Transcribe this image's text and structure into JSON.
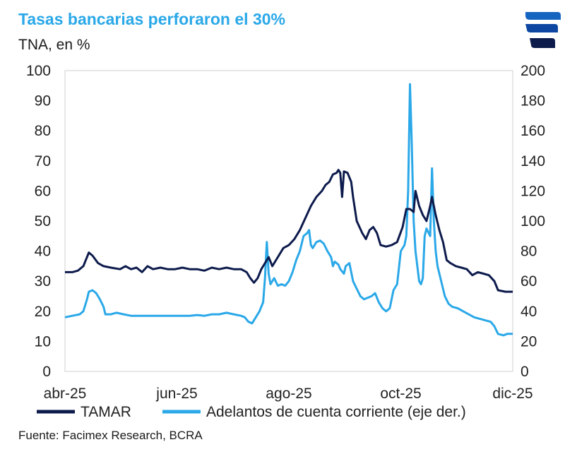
{
  "header": {
    "title": "Tasas bancarias perforaron el 30%",
    "subtitle": "TNA, en %"
  },
  "footer": {
    "source": "Fuente: Facimex Research, BCRA"
  },
  "colors": {
    "title": "#2aa8e8",
    "tamar": "#0d1b4c",
    "adelantos": "#2aa8e8",
    "axis": "#222222"
  },
  "chart_data": {
    "type": "line",
    "title": "Tasas bancarias perforaron el 30%",
    "ylabel": "TNA, en %",
    "ylim": [
      0,
      100
    ],
    "y2lim": [
      0,
      200
    ],
    "yticks": [
      "0",
      "10",
      "20",
      "30",
      "40",
      "50",
      "60",
      "70",
      "80",
      "90",
      "100"
    ],
    "y2ticks": [
      "0",
      "20",
      "40",
      "60",
      "80",
      "100",
      "120",
      "140",
      "160",
      "180",
      "200"
    ],
    "xticks": [
      {
        "label": "abr-25",
        "day": 0
      },
      {
        "label": "jun-25",
        "day": 61
      },
      {
        "label": "ago-25",
        "day": 122
      },
      {
        "label": "oct-25",
        "day": 183
      },
      {
        "label": "dic-25",
        "day": 244
      }
    ],
    "xlim_days": [
      0,
      244
    ],
    "series": [
      {
        "name": "TAMAR",
        "axis": "left",
        "points": [
          [
            0,
            33
          ],
          [
            4,
            33
          ],
          [
            7,
            33.5
          ],
          [
            10,
            35
          ],
          [
            12,
            38
          ],
          [
            13,
            39.5
          ],
          [
            15,
            38.5
          ],
          [
            18,
            36
          ],
          [
            21,
            35
          ],
          [
            25,
            34.5
          ],
          [
            30,
            34
          ],
          [
            33,
            35
          ],
          [
            36,
            34
          ],
          [
            39,
            34.5
          ],
          [
            42,
            33
          ],
          [
            45,
            35
          ],
          [
            48,
            34
          ],
          [
            52,
            34.5
          ],
          [
            56,
            34
          ],
          [
            60,
            34
          ],
          [
            64,
            34.5
          ],
          [
            68,
            34
          ],
          [
            72,
            34
          ],
          [
            76,
            33.5
          ],
          [
            80,
            34.5
          ],
          [
            84,
            34
          ],
          [
            88,
            34.5
          ],
          [
            92,
            34
          ],
          [
            96,
            34
          ],
          [
            99,
            33
          ],
          [
            101,
            31
          ],
          [
            103,
            29.5
          ],
          [
            105,
            31
          ],
          [
            107,
            34
          ],
          [
            109,
            36
          ],
          [
            111,
            38
          ],
          [
            113,
            35
          ],
          [
            116,
            38
          ],
          [
            119,
            41
          ],
          [
            122,
            42
          ],
          [
            125,
            44
          ],
          [
            128,
            47
          ],
          [
            131,
            51
          ],
          [
            134,
            55
          ],
          [
            137,
            58
          ],
          [
            140,
            60
          ],
          [
            142,
            62
          ],
          [
            144,
            63
          ],
          [
            146,
            65.5
          ],
          [
            148,
            66
          ],
          [
            149,
            67
          ],
          [
            150,
            66
          ],
          [
            151,
            58
          ],
          [
            152,
            66.5
          ],
          [
            154,
            66
          ],
          [
            156,
            63
          ],
          [
            157,
            58
          ],
          [
            159,
            50
          ],
          [
            162,
            46
          ],
          [
            164,
            44
          ],
          [
            166,
            47
          ],
          [
            168,
            48
          ],
          [
            170,
            46
          ],
          [
            172,
            42
          ],
          [
            175,
            41.5
          ],
          [
            178,
            42
          ],
          [
            181,
            43
          ],
          [
            184,
            48
          ],
          [
            186,
            54
          ],
          [
            188,
            54
          ],
          [
            190,
            53
          ],
          [
            191,
            60
          ],
          [
            193,
            55
          ],
          [
            195,
            52
          ],
          [
            197,
            50
          ],
          [
            199,
            55
          ],
          [
            200,
            58
          ],
          [
            202,
            52
          ],
          [
            204,
            47
          ],
          [
            206,
            43
          ],
          [
            208,
            37
          ],
          [
            210,
            36
          ],
          [
            213,
            35
          ],
          [
            216,
            34.5
          ],
          [
            219,
            34
          ],
          [
            222,
            32
          ],
          [
            225,
            33
          ],
          [
            228,
            32.5
          ],
          [
            231,
            32
          ],
          [
            234,
            30
          ],
          [
            236,
            27
          ],
          [
            240,
            26.5
          ],
          [
            244,
            26.5
          ]
        ]
      },
      {
        "name": "Adelantos de cuenta corriente (eje der.)",
        "axis": "right",
        "points": [
          [
            0,
            36
          ],
          [
            4,
            37
          ],
          [
            8,
            38
          ],
          [
            10,
            40
          ],
          [
            12,
            48
          ],
          [
            13,
            53
          ],
          [
            15,
            54
          ],
          [
            17,
            52
          ],
          [
            19,
            48
          ],
          [
            21,
            43
          ],
          [
            22,
            38
          ],
          [
            25,
            38
          ],
          [
            28,
            39
          ],
          [
            32,
            38
          ],
          [
            36,
            37
          ],
          [
            40,
            37
          ],
          [
            44,
            37
          ],
          [
            48,
            37
          ],
          [
            52,
            37
          ],
          [
            56,
            37
          ],
          [
            60,
            37
          ],
          [
            64,
            37
          ],
          [
            68,
            37
          ],
          [
            72,
            37.5
          ],
          [
            76,
            37
          ],
          [
            80,
            38
          ],
          [
            84,
            38
          ],
          [
            88,
            39
          ],
          [
            92,
            38
          ],
          [
            96,
            37
          ],
          [
            98,
            36
          ],
          [
            100,
            33
          ],
          [
            102,
            32
          ],
          [
            104,
            36
          ],
          [
            106,
            40
          ],
          [
            108,
            46
          ],
          [
            109,
            62
          ],
          [
            110,
            86
          ],
          [
            111,
            65
          ],
          [
            112,
            58
          ],
          [
            114,
            62
          ],
          [
            116,
            57
          ],
          [
            118,
            58
          ],
          [
            120,
            57
          ],
          [
            122,
            60
          ],
          [
            124,
            66
          ],
          [
            126,
            74
          ],
          [
            128,
            80
          ],
          [
            130,
            90
          ],
          [
            132,
            92
          ],
          [
            133,
            94
          ],
          [
            134,
            84
          ],
          [
            135,
            82
          ],
          [
            137,
            86
          ],
          [
            139,
            87
          ],
          [
            141,
            85
          ],
          [
            143,
            80
          ],
          [
            145,
            76
          ],
          [
            146,
            70
          ],
          [
            147,
            73
          ],
          [
            148,
            72
          ],
          [
            149,
            71
          ],
          [
            150,
            68
          ],
          [
            152,
            65
          ],
          [
            153,
            70
          ],
          [
            155,
            72
          ],
          [
            157,
            60
          ],
          [
            159,
            55
          ],
          [
            161,
            50
          ],
          [
            163,
            48
          ],
          [
            165,
            49
          ],
          [
            167,
            50
          ],
          [
            169,
            52
          ],
          [
            171,
            46
          ],
          [
            173,
            42
          ],
          [
            175,
            40
          ],
          [
            177,
            42
          ],
          [
            179,
            54
          ],
          [
            181,
            58
          ],
          [
            183,
            80
          ],
          [
            185,
            84
          ],
          [
            186,
            90
          ],
          [
            187,
            120
          ],
          [
            188,
            191
          ],
          [
            189,
            150
          ],
          [
            190,
            100
          ],
          [
            191,
            80
          ],
          [
            192,
            70
          ],
          [
            193,
            60
          ],
          [
            194,
            58
          ],
          [
            195,
            62
          ],
          [
            196,
            90
          ],
          [
            197,
            95
          ],
          [
            199,
            90
          ],
          [
            200,
            135
          ],
          [
            201,
            100
          ],
          [
            202,
            80
          ],
          [
            203,
            70
          ],
          [
            205,
            60
          ],
          [
            207,
            50
          ],
          [
            209,
            45
          ],
          [
            211,
            43
          ],
          [
            214,
            42
          ],
          [
            217,
            40
          ],
          [
            220,
            38
          ],
          [
            223,
            36
          ],
          [
            226,
            35
          ],
          [
            229,
            34
          ],
          [
            232,
            33
          ],
          [
            234,
            30
          ],
          [
            236,
            25
          ],
          [
            239,
            24
          ],
          [
            241,
            25
          ],
          [
            244,
            25
          ]
        ]
      }
    ]
  }
}
